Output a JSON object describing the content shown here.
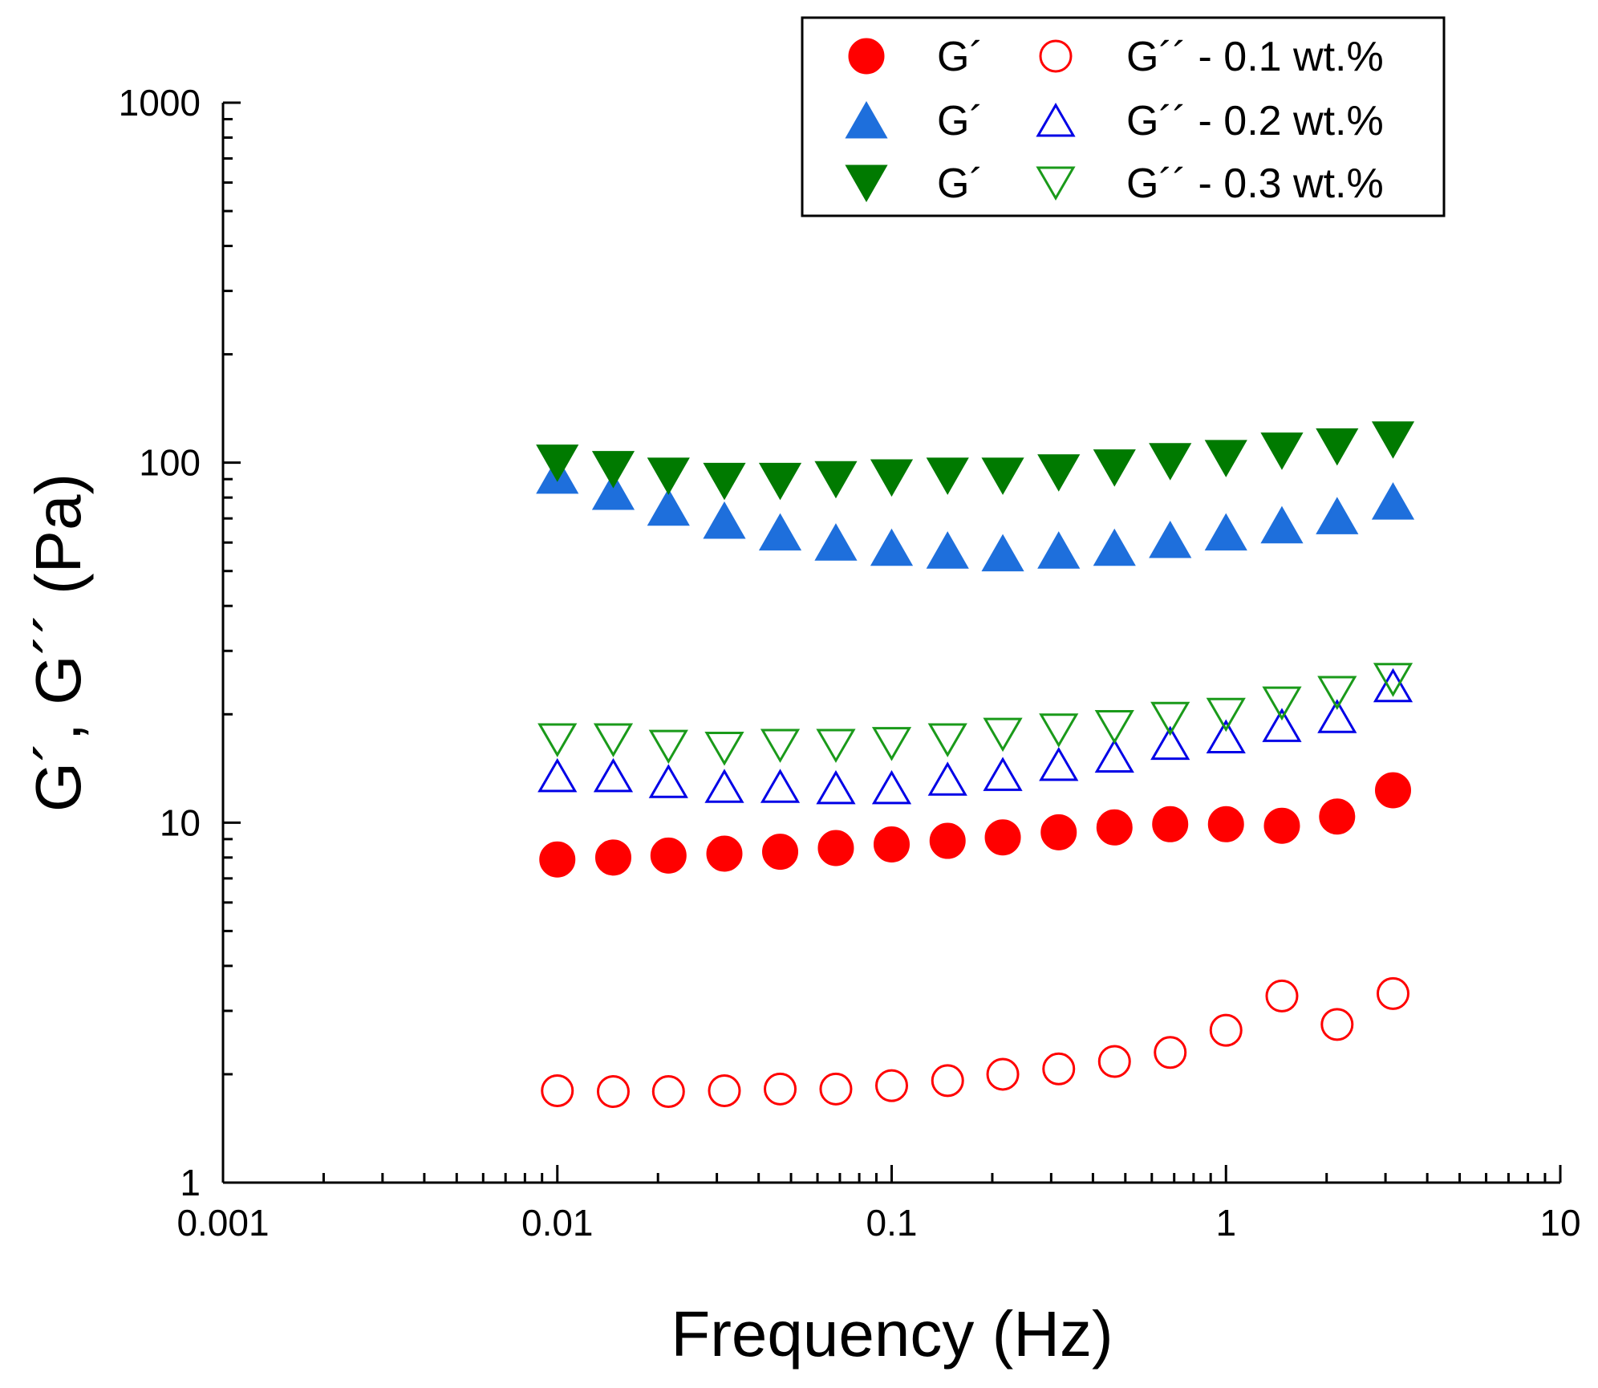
{
  "chart_data": {
    "type": "scatter",
    "title": "",
    "xlabel": "Frequency (Hz)",
    "ylabel": "G´, G´´ (Pa)",
    "xscale": "log",
    "yscale": "log",
    "xlim": [
      0.001,
      10
    ],
    "ylim": [
      1,
      1000
    ],
    "grid": false,
    "legend_position": "top-right",
    "x_tick_labels": [
      "0.001",
      "0.01",
      "0.1",
      "1",
      "10"
    ],
    "y_tick_labels": [
      "1",
      "10",
      "100",
      "1000"
    ],
    "x_ticks": [
      0.001,
      0.01,
      0.1,
      1,
      10
    ],
    "y_ticks": [
      1,
      10,
      100,
      1000
    ],
    "x": [
      0.01,
      0.0147,
      0.0215,
      0.0316,
      0.0464,
      0.0681,
      0.1,
      0.147,
      0.215,
      0.316,
      0.464,
      0.681,
      1.0,
      1.47,
      2.15,
      3.16
    ],
    "legend": [
      {
        "marker_left": "circle-filled",
        "label_left": "G´",
        "marker_right": "circle-open",
        "label_right": "G´´ - 0.1 wt.%"
      },
      {
        "marker_left": "triangle-up-filled",
        "label_left": "G´",
        "marker_right": "triangle-up-open",
        "label_right": "G´´ - 0.2 wt.%"
      },
      {
        "marker_left": "triangle-down-filled",
        "label_left": "G´",
        "marker_right": "triangle-down-open",
        "label_right": "G´´ - 0.3 wt.%"
      }
    ],
    "series": [
      {
        "name": "G´ 0.1 wt.%",
        "marker": "circle",
        "filled": true,
        "color": "#ff0000",
        "values": [
          7.9,
          8.0,
          8.1,
          8.2,
          8.3,
          8.5,
          8.7,
          8.9,
          9.1,
          9.4,
          9.7,
          9.9,
          9.9,
          9.8,
          10.4,
          12.3
        ]
      },
      {
        "name": "G´´ 0.1 wt.%",
        "marker": "circle",
        "filled": false,
        "color": "#ff0000",
        "values": [
          1.8,
          1.79,
          1.79,
          1.8,
          1.82,
          1.82,
          1.86,
          1.92,
          2.0,
          2.07,
          2.17,
          2.3,
          2.65,
          3.3,
          2.75,
          3.35
        ]
      },
      {
        "name": "G´ 0.2 wt.%",
        "marker": "triangle-up",
        "filled": true,
        "color": "#1e6fdc",
        "values": [
          92,
          83,
          75,
          69,
          64,
          60,
          58,
          57,
          56,
          57,
          58,
          61,
          64,
          67,
          71,
          78
        ]
      },
      {
        "name": "G´´ 0.2 wt.%",
        "marker": "triangle-up",
        "filled": false,
        "color": "#0000e6",
        "values": [
          13.5,
          13.5,
          13.0,
          12.6,
          12.6,
          12.5,
          12.5,
          13.2,
          13.6,
          14.5,
          15.3,
          16.6,
          17.3,
          18.6,
          19.7,
          24.0
        ]
      },
      {
        "name": "G´ 0.3 wt.%",
        "marker": "triangle-down",
        "filled": true,
        "color": "#007a00",
        "values": [
          100,
          96,
          92,
          89,
          89,
          90,
          91,
          92,
          92,
          94,
          97,
          101,
          103,
          108,
          111,
          116
        ]
      },
      {
        "name": "G´´ 0.3 wt.%",
        "marker": "triangle-down",
        "filled": false,
        "color": "#1a9a1a",
        "values": [
          17.0,
          17.0,
          16.3,
          16.1,
          16.4,
          16.4,
          16.6,
          17.0,
          17.6,
          18.1,
          18.5,
          19.5,
          20.0,
          21.5,
          23.0,
          25.0
        ]
      }
    ]
  }
}
